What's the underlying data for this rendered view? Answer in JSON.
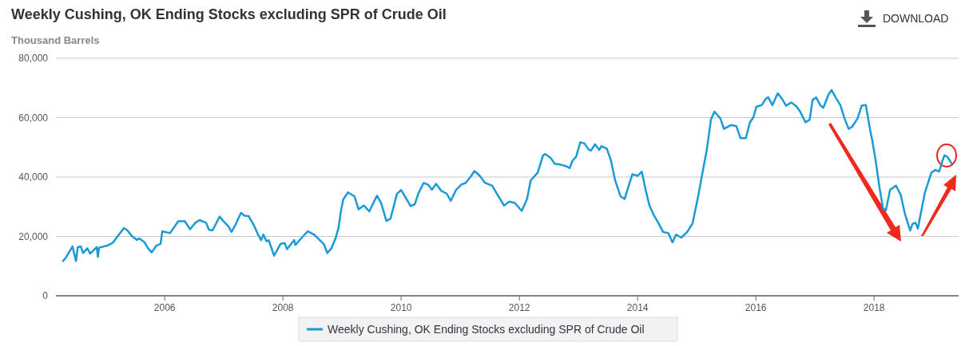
{
  "chart_data": {
    "type": "line",
    "title": "Weekly Cushing, OK Ending Stocks excluding SPR of Crude Oil",
    "ylabel": "Thousand Barrels",
    "annotations": [
      "DOWNLOAD"
    ],
    "xlim": [
      2004.16,
      2019.43
    ],
    "xticks": [
      2006,
      2008,
      2010,
      2012,
      2014,
      2016,
      2018
    ],
    "ylim": [
      0,
      80000
    ],
    "yticks": [
      0,
      {
        "value": 20000,
        "label": "20,000"
      },
      {
        "value": 40000,
        "label": "40,000"
      },
      {
        "value": 60000,
        "label": "60,000"
      },
      {
        "value": 80000,
        "label": "80,000"
      }
    ],
    "grid": "y",
    "legend": "bottom",
    "marker": "none",
    "line_style": "solid",
    "series": [
      {
        "name": "Weekly Cushing, OK Ending Stocks excluding SPR of Crude Oil",
        "color": "#1a9ad6",
        "x": [
          2004.28,
          2004.33,
          2004.44,
          2004.5,
          2004.53,
          2004.58,
          2004.62,
          2004.69,
          2004.74,
          2004.85,
          2004.87,
          2004.89,
          2005.03,
          2005.12,
          2005.21,
          2005.31,
          2005.37,
          2005.44,
          2005.53,
          2005.57,
          2005.66,
          2005.71,
          2005.78,
          2005.86,
          2005.93,
          2005.96,
          2006.09,
          2006.23,
          2006.34,
          2006.43,
          2006.52,
          2006.59,
          2006.7,
          2006.75,
          2006.81,
          2006.93,
          2006.99,
          2007.08,
          2007.13,
          2007.2,
          2007.29,
          2007.35,
          2007.42,
          2007.51,
          2007.58,
          2007.63,
          2007.67,
          2007.72,
          2007.76,
          2007.85,
          2007.96,
          2008.03,
          2008.07,
          2008.19,
          2008.21,
          2008.32,
          2008.42,
          2008.53,
          2008.62,
          2008.69,
          2008.75,
          2008.82,
          2008.89,
          2008.94,
          2008.98,
          2009.02,
          2009.1,
          2009.21,
          2009.28,
          2009.37,
          2009.46,
          2009.59,
          2009.66,
          2009.75,
          2009.82,
          2009.93,
          2010.0,
          2010.16,
          2010.23,
          2010.29,
          2010.38,
          2010.45,
          2010.52,
          2010.59,
          2010.68,
          2010.77,
          2010.84,
          2010.93,
          2011.02,
          2011.09,
          2011.18,
          2011.24,
          2011.33,
          2011.42,
          2011.54,
          2011.63,
          2011.74,
          2011.83,
          2011.92,
          2012.04,
          2012.13,
          2012.19,
          2012.31,
          2012.4,
          2012.44,
          2012.53,
          2012.6,
          2012.69,
          2012.78,
          2012.85,
          2012.9,
          2012.96,
          2013.03,
          2013.1,
          2013.17,
          2013.21,
          2013.28,
          2013.35,
          2013.39,
          2013.48,
          2013.55,
          2013.62,
          2013.71,
          2013.78,
          2013.85,
          2013.91,
          2014.0,
          2014.07,
          2014.14,
          2014.2,
          2014.27,
          2014.36,
          2014.43,
          2014.52,
          2014.59,
          2014.65,
          2014.74,
          2014.84,
          2014.93,
          2015.02,
          2015.11,
          2015.17,
          2015.24,
          2015.3,
          2015.4,
          2015.46,
          2015.58,
          2015.67,
          2015.74,
          2015.83,
          2015.9,
          2015.96,
          2016.01,
          2016.1,
          2016.17,
          2016.21,
          2016.28,
          2016.37,
          2016.44,
          2016.51,
          2016.6,
          2016.69,
          2016.75,
          2016.84,
          2016.91,
          2016.96,
          2017.02,
          2017.09,
          2017.14,
          2017.23,
          2017.28,
          2017.36,
          2017.43,
          2017.5,
          2017.57,
          2017.63,
          2017.72,
          2017.79,
          2017.86,
          2017.93,
          2017.97,
          2018.02,
          2018.09,
          2018.15,
          2018.2,
          2018.27,
          2018.31,
          2018.37,
          2018.45,
          2018.52,
          2018.61,
          2018.65,
          2018.7,
          2018.74,
          2018.79,
          2018.86,
          2018.97,
          2019.04,
          2019.1,
          2019.15,
          2019.19,
          2019.24,
          2019.31
        ],
        "values": [
          11700,
          12900,
          16600,
          11700,
          16400,
          16600,
          14400,
          16000,
          14200,
          16400,
          13100,
          16200,
          16900,
          17800,
          20200,
          22800,
          22000,
          20200,
          18800,
          19300,
          18000,
          16200,
          14600,
          16900,
          17500,
          21700,
          21100,
          25100,
          25100,
          22400,
          24600,
          25500,
          24600,
          22200,
          22000,
          26700,
          25200,
          23300,
          21500,
          24000,
          27900,
          27000,
          26800,
          23700,
          20600,
          18700,
          20600,
          18400,
          18700,
          13500,
          17500,
          17700,
          15700,
          18800,
          17100,
          19600,
          21700,
          20600,
          18800,
          17500,
          14400,
          16000,
          19300,
          22800,
          28400,
          32400,
          34800,
          33500,
          29100,
          30400,
          28400,
          33700,
          31300,
          25200,
          26000,
          34400,
          35600,
          30200,
          30800,
          34400,
          38000,
          37500,
          35700,
          37700,
          35300,
          34400,
          32000,
          35700,
          37500,
          38000,
          40200,
          42000,
          40400,
          38000,
          37100,
          34000,
          30400,
          31700,
          31300,
          28600,
          32600,
          38800,
          41500,
          47300,
          47700,
          46400,
          44400,
          44200,
          43700,
          43000,
          45500,
          46800,
          51700,
          51300,
          49300,
          48900,
          51000,
          49100,
          50400,
          49500,
          45500,
          38800,
          33500,
          32600,
          37100,
          40900,
          40400,
          41800,
          35300,
          30400,
          27300,
          24200,
          21500,
          21100,
          18000,
          20600,
          19600,
          21500,
          24400,
          33100,
          42800,
          49100,
          59300,
          62000,
          59700,
          56200,
          57500,
          57100,
          53100,
          53100,
          58400,
          60200,
          63700,
          64200,
          66400,
          66800,
          64200,
          68200,
          66400,
          64000,
          65100,
          63700,
          62000,
          58400,
          59300,
          66000,
          66800,
          64200,
          63300,
          67800,
          69300,
          66400,
          64200,
          59700,
          56200,
          56900,
          59700,
          64000,
          64200,
          56200,
          52200,
          46400,
          36600,
          29500,
          28800,
          35700,
          36200,
          37100,
          34000,
          27700,
          22000,
          24200,
          24600,
          22600,
          27700,
          34800,
          41500,
          42400,
          41800,
          45100,
          47300,
          46800,
          44600
        ]
      }
    ]
  }
}
